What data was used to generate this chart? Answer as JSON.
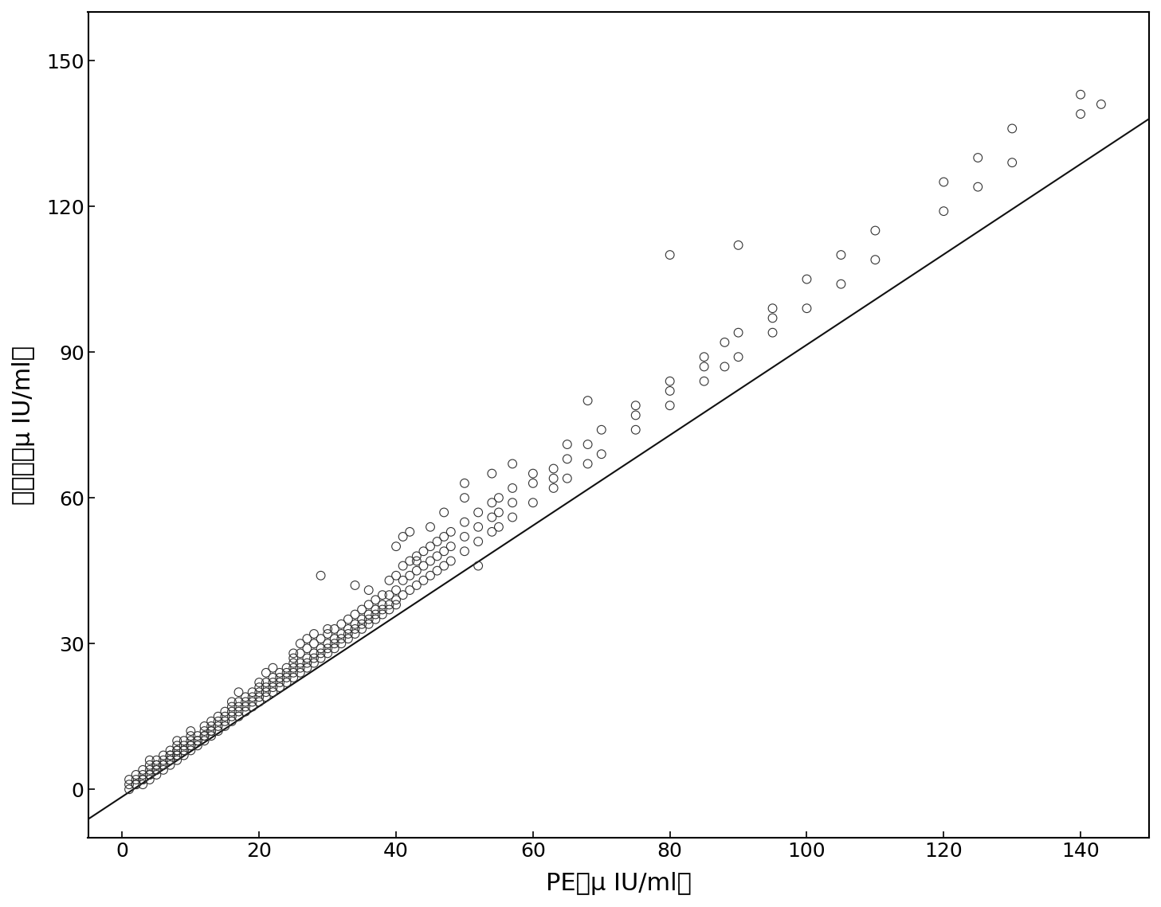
{
  "xlabel": "PE（μ IU/ml）",
  "ylabel": "本发明（μ IU/ml）",
  "xlim": [
    -5,
    150
  ],
  "ylim": [
    -10,
    160
  ],
  "xticks": [
    0,
    20,
    40,
    60,
    80,
    100,
    120,
    140
  ],
  "yticks": [
    0,
    30,
    60,
    90,
    120,
    150
  ],
  "regression_line": {
    "x0": -5,
    "x1": 150,
    "slope": 0.93,
    "intercept": -1.5
  },
  "scatter_color": "none",
  "scatter_edgecolor": "#333333",
  "scatter_size": 60,
  "line_color": "#111111",
  "background_color": "#ffffff",
  "points": [
    [
      1,
      1
    ],
    [
      1,
      2
    ],
    [
      1,
      0
    ],
    [
      2,
      1
    ],
    [
      2,
      2
    ],
    [
      2,
      3
    ],
    [
      2,
      1
    ],
    [
      3,
      2
    ],
    [
      3,
      3
    ],
    [
      3,
      1
    ],
    [
      3,
      4
    ],
    [
      3,
      2
    ],
    [
      4,
      3
    ],
    [
      4,
      2
    ],
    [
      4,
      4
    ],
    [
      4,
      5
    ],
    [
      4,
      3
    ],
    [
      4,
      6
    ],
    [
      5,
      4
    ],
    [
      5,
      3
    ],
    [
      5,
      5
    ],
    [
      5,
      6
    ],
    [
      5,
      4
    ],
    [
      5,
      5
    ],
    [
      6,
      5
    ],
    [
      6,
      4
    ],
    [
      6,
      6
    ],
    [
      6,
      7
    ],
    [
      6,
      5
    ],
    [
      7,
      6
    ],
    [
      7,
      5
    ],
    [
      7,
      7
    ],
    [
      7,
      8
    ],
    [
      7,
      6
    ],
    [
      7,
      7
    ],
    [
      8,
      7
    ],
    [
      8,
      6
    ],
    [
      8,
      8
    ],
    [
      8,
      9
    ],
    [
      8,
      7
    ],
    [
      8,
      10
    ],
    [
      8,
      8
    ],
    [
      9,
      8
    ],
    [
      9,
      7
    ],
    [
      9,
      9
    ],
    [
      9,
      10
    ],
    [
      9,
      8
    ],
    [
      10,
      9
    ],
    [
      10,
      8
    ],
    [
      10,
      10
    ],
    [
      10,
      11
    ],
    [
      10,
      9
    ],
    [
      10,
      12
    ],
    [
      11,
      10
    ],
    [
      11,
      9
    ],
    [
      11,
      11
    ],
    [
      11,
      10
    ],
    [
      12,
      11
    ],
    [
      12,
      10
    ],
    [
      12,
      12
    ],
    [
      12,
      13
    ],
    [
      12,
      11
    ],
    [
      13,
      12
    ],
    [
      13,
      11
    ],
    [
      13,
      13
    ],
    [
      13,
      14
    ],
    [
      13,
      12
    ],
    [
      14,
      13
    ],
    [
      14,
      12
    ],
    [
      14,
      14
    ],
    [
      14,
      15
    ],
    [
      15,
      14
    ],
    [
      15,
      13
    ],
    [
      15,
      15
    ],
    [
      15,
      16
    ],
    [
      16,
      15
    ],
    [
      16,
      14
    ],
    [
      16,
      16
    ],
    [
      16,
      17
    ],
    [
      16,
      18
    ],
    [
      17,
      16
    ],
    [
      17,
      15
    ],
    [
      17,
      17
    ],
    [
      17,
      18
    ],
    [
      17,
      20
    ],
    [
      18,
      17
    ],
    [
      18,
      16
    ],
    [
      18,
      18
    ],
    [
      18,
      19
    ],
    [
      19,
      18
    ],
    [
      19,
      17
    ],
    [
      19,
      19
    ],
    [
      19,
      20
    ],
    [
      20,
      19
    ],
    [
      20,
      18
    ],
    [
      20,
      20
    ],
    [
      20,
      21
    ],
    [
      20,
      22
    ],
    [
      21,
      20
    ],
    [
      21,
      19
    ],
    [
      21,
      21
    ],
    [
      21,
      22
    ],
    [
      21,
      24
    ],
    [
      22,
      21
    ],
    [
      22,
      20
    ],
    [
      22,
      22
    ],
    [
      22,
      23
    ],
    [
      22,
      25
    ],
    [
      23,
      22
    ],
    [
      23,
      21
    ],
    [
      23,
      23
    ],
    [
      23,
      24
    ],
    [
      24,
      23
    ],
    [
      24,
      22
    ],
    [
      24,
      24
    ],
    [
      24,
      25
    ],
    [
      25,
      24
    ],
    [
      25,
      23
    ],
    [
      25,
      25
    ],
    [
      25,
      26
    ],
    [
      25,
      27
    ],
    [
      25,
      28
    ],
    [
      26,
      25
    ],
    [
      26,
      24
    ],
    [
      26,
      26
    ],
    [
      26,
      28
    ],
    [
      26,
      30
    ],
    [
      27,
      26
    ],
    [
      27,
      25
    ],
    [
      27,
      27
    ],
    [
      27,
      29
    ],
    [
      27,
      31
    ],
    [
      28,
      27
    ],
    [
      28,
      26
    ],
    [
      28,
      28
    ],
    [
      28,
      30
    ],
    [
      28,
      32
    ],
    [
      29,
      28
    ],
    [
      29,
      27
    ],
    [
      29,
      29
    ],
    [
      29,
      31
    ],
    [
      29,
      44
    ],
    [
      30,
      29
    ],
    [
      30,
      28
    ],
    [
      30,
      30
    ],
    [
      30,
      32
    ],
    [
      30,
      33
    ],
    [
      31,
      30
    ],
    [
      31,
      29
    ],
    [
      31,
      31
    ],
    [
      31,
      33
    ],
    [
      32,
      31
    ],
    [
      32,
      30
    ],
    [
      32,
      32
    ],
    [
      32,
      34
    ],
    [
      33,
      32
    ],
    [
      33,
      31
    ],
    [
      33,
      33
    ],
    [
      33,
      35
    ],
    [
      34,
      33
    ],
    [
      34,
      32
    ],
    [
      34,
      34
    ],
    [
      34,
      36
    ],
    [
      34,
      42
    ],
    [
      35,
      34
    ],
    [
      35,
      33
    ],
    [
      35,
      35
    ],
    [
      35,
      37
    ],
    [
      36,
      35
    ],
    [
      36,
      34
    ],
    [
      36,
      36
    ],
    [
      36,
      38
    ],
    [
      36,
      41
    ],
    [
      37,
      36
    ],
    [
      37,
      35
    ],
    [
      37,
      37
    ],
    [
      37,
      39
    ],
    [
      38,
      37
    ],
    [
      38,
      36
    ],
    [
      38,
      38
    ],
    [
      38,
      40
    ],
    [
      39,
      38
    ],
    [
      39,
      37
    ],
    [
      39,
      40
    ],
    [
      39,
      43
    ],
    [
      40,
      39
    ],
    [
      40,
      38
    ],
    [
      40,
      41
    ],
    [
      40,
      44
    ],
    [
      40,
      50
    ],
    [
      41,
      40
    ],
    [
      41,
      43
    ],
    [
      41,
      46
    ],
    [
      41,
      52
    ],
    [
      42,
      41
    ],
    [
      42,
      44
    ],
    [
      42,
      47
    ],
    [
      42,
      53
    ],
    [
      43,
      42
    ],
    [
      43,
      45
    ],
    [
      43,
      48
    ],
    [
      43,
      47
    ],
    [
      44,
      43
    ],
    [
      44,
      46
    ],
    [
      44,
      49
    ],
    [
      45,
      44
    ],
    [
      45,
      47
    ],
    [
      45,
      50
    ],
    [
      45,
      54
    ],
    [
      46,
      45
    ],
    [
      46,
      48
    ],
    [
      46,
      51
    ],
    [
      47,
      46
    ],
    [
      47,
      49
    ],
    [
      47,
      52
    ],
    [
      47,
      57
    ],
    [
      48,
      47
    ],
    [
      48,
      50
    ],
    [
      48,
      53
    ],
    [
      50,
      49
    ],
    [
      50,
      52
    ],
    [
      50,
      55
    ],
    [
      50,
      60
    ],
    [
      50,
      63
    ],
    [
      52,
      51
    ],
    [
      52,
      54
    ],
    [
      52,
      57
    ],
    [
      52,
      46
    ],
    [
      54,
      53
    ],
    [
      54,
      56
    ],
    [
      54,
      59
    ],
    [
      54,
      65
    ],
    [
      55,
      54
    ],
    [
      55,
      57
    ],
    [
      55,
      60
    ],
    [
      57,
      56
    ],
    [
      57,
      59
    ],
    [
      57,
      62
    ],
    [
      57,
      67
    ],
    [
      60,
      59
    ],
    [
      60,
      63
    ],
    [
      60,
      65
    ],
    [
      63,
      62
    ],
    [
      63,
      66
    ],
    [
      63,
      64
    ],
    [
      65,
      64
    ],
    [
      65,
      68
    ],
    [
      65,
      71
    ],
    [
      68,
      67
    ],
    [
      68,
      71
    ],
    [
      68,
      80
    ],
    [
      70,
      69
    ],
    [
      70,
      74
    ],
    [
      75,
      74
    ],
    [
      75,
      79
    ],
    [
      75,
      77
    ],
    [
      80,
      79
    ],
    [
      80,
      84
    ],
    [
      80,
      82
    ],
    [
      80,
      110
    ],
    [
      85,
      84
    ],
    [
      85,
      89
    ],
    [
      85,
      87
    ],
    [
      88,
      87
    ],
    [
      88,
      92
    ],
    [
      90,
      89
    ],
    [
      90,
      94
    ],
    [
      90,
      112
    ],
    [
      95,
      94
    ],
    [
      95,
      99
    ],
    [
      95,
      97
    ],
    [
      100,
      99
    ],
    [
      100,
      105
    ],
    [
      105,
      104
    ],
    [
      105,
      110
    ],
    [
      110,
      109
    ],
    [
      110,
      115
    ],
    [
      120,
      119
    ],
    [
      120,
      125
    ],
    [
      125,
      124
    ],
    [
      125,
      130
    ],
    [
      130,
      129
    ],
    [
      130,
      136
    ],
    [
      140,
      139
    ],
    [
      140,
      143
    ],
    [
      143,
      141
    ]
  ]
}
